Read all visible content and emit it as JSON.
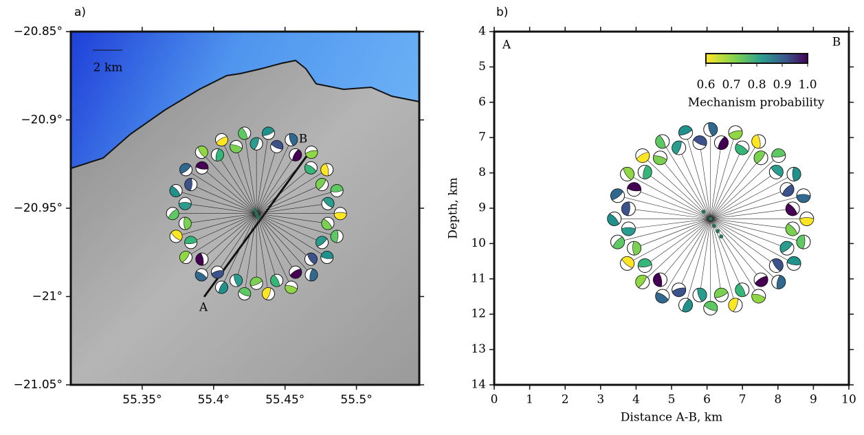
{
  "chart_data": [
    {
      "type": "map",
      "panel_label": "a)",
      "scale_bar": "2 km",
      "point_a": "A",
      "point_b": "B",
      "xlim": [
        55.3,
        55.544
      ],
      "ylim": [
        -21.05,
        -20.85
      ],
      "xticks": [
        {
          "value": 55.35,
          "label": "55.35°"
        },
        {
          "value": 55.4,
          "label": "55.4°"
        },
        {
          "value": 55.45,
          "label": "55.45°"
        },
        {
          "value": 55.5,
          "label": "55.5°"
        }
      ],
      "yticks": [
        {
          "value": -20.85,
          "label": "−20.85°"
        },
        {
          "value": -20.9,
          "label": "−20.9°"
        },
        {
          "value": -20.95,
          "label": "−20.95°"
        },
        {
          "value": -21,
          "label": "−21°"
        },
        {
          "value": -21.05,
          "label": "−21.05°"
        }
      ],
      "x": [
        55.429,
        55.43,
        55.431
      ],
      "y": [
        -20.951,
        -20.953,
        -20.955
      ],
      "color": "#2d6e5e"
    },
    {
      "type": "scatter",
      "panel_label": "b)",
      "point_a": "A",
      "point_b": "B",
      "xlabel": "Distance A-B, km",
      "ylabel": "Depth, km",
      "xlim": [
        0,
        10
      ],
      "ylim": [
        14,
        4
      ],
      "xticks": [
        0,
        1,
        2,
        3,
        4,
        5,
        6,
        7,
        8,
        9,
        10
      ],
      "yticks": [
        4,
        5,
        6,
        7,
        8,
        9,
        10,
        11,
        12,
        13,
        14
      ],
      "colorbar_label": "Mechanism probability",
      "colorbar_lim": [
        0.6,
        1.0
      ],
      "colorbar_ticks": [
        0.6,
        0.7,
        0.8,
        0.9,
        {
          "value": 1.0,
          "label": "1.0"
        }
      ],
      "x": [
        5.9,
        6.1,
        6.2,
        6.3,
        6.4
      ],
      "y": [
        9.1,
        9.3,
        9.5,
        9.65,
        9.8
      ],
      "color": "#2d6e5e"
    }
  ]
}
